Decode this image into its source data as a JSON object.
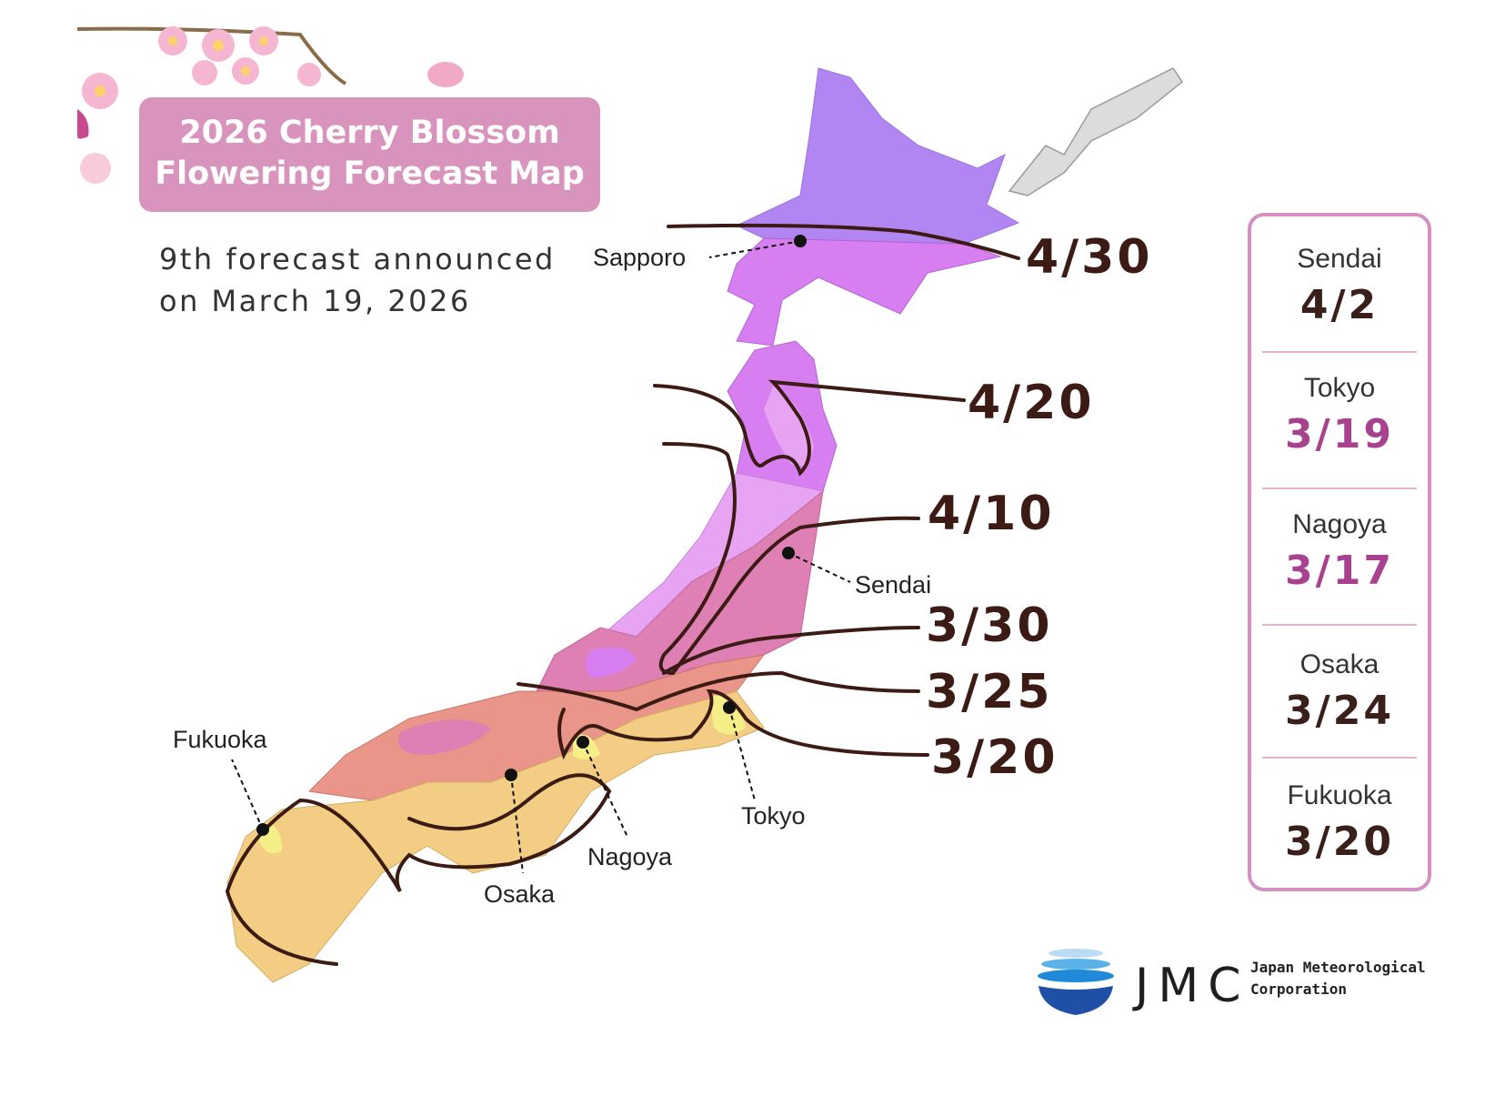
{
  "title": {
    "line1": "2026 Cherry Blossom",
    "line2": "Flowering Forecast Map"
  },
  "subtitle": {
    "line1": "9th forecast announced",
    "line2": "on March 19, 2026"
  },
  "isoline_labels": [
    "4/30",
    "4/20",
    "4/10",
    "3/30",
    "3/25",
    "3/20"
  ],
  "map_cities": [
    "Sapporo",
    "Sendai",
    "Tokyo",
    "Nagoya",
    "Osaka",
    "Fukuoka"
  ],
  "forecast_panel": [
    {
      "city": "Sendai",
      "date": "4/2",
      "color": "#3a1f1a"
    },
    {
      "city": "Tokyo",
      "date": "3/19",
      "color": "#a8428f"
    },
    {
      "city": "Nagoya",
      "date": "3/17",
      "color": "#a8428f"
    },
    {
      "city": "Osaka",
      "date": "3/24",
      "color": "#3a1f1a"
    },
    {
      "city": "Fukuoka",
      "date": "3/20",
      "color": "#3a1f1a"
    }
  ],
  "zone_colors": {
    "4/30": "#b185f2",
    "4/20": "#d77ef0",
    "4/10": "#e7a4f3",
    "3/30": "#de80b4",
    "3/25": "#e9958a",
    "3/20": "#f2cd83",
    "before": "#f5ef88"
  },
  "line_color": "#3b1b14",
  "logo": {
    "letters": "JMC",
    "name_line1": "Japan Meteorological",
    "name_line2": "Corporation"
  }
}
